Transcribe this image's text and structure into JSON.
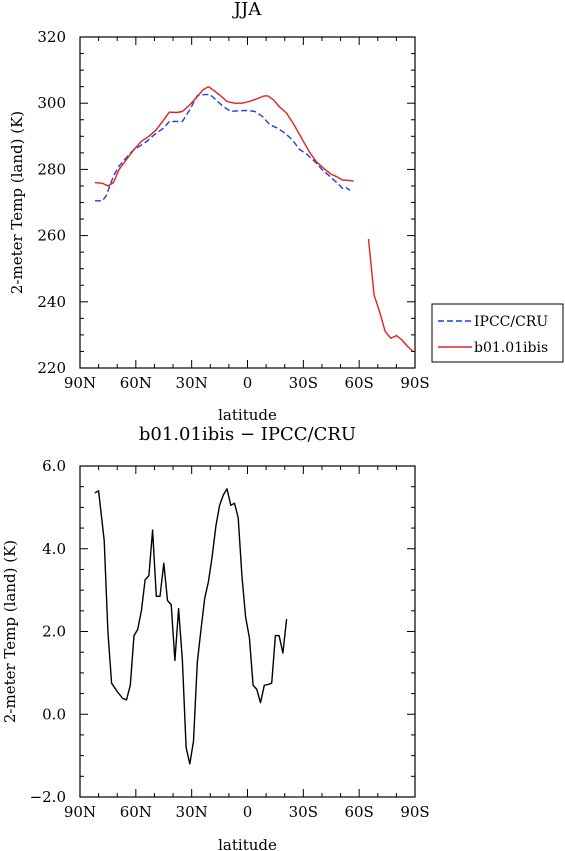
{
  "chart_data": [
    {
      "type": "line",
      "title": "JJA",
      "xlabel": "latitude",
      "ylabel": "2-meter Temp (land) (K)",
      "xlim": [
        90,
        -90
      ],
      "ylim": [
        220,
        320
      ],
      "xtick_values": [
        90,
        60,
        30,
        0,
        -30,
        -60,
        -90
      ],
      "xtick_labels": [
        "90N",
        "60N",
        "30N",
        "0",
        "30S",
        "60S",
        "90S"
      ],
      "ytick_values": [
        220,
        240,
        260,
        280,
        300,
        320
      ],
      "ytick_labels": [
        "220",
        "240",
        "260",
        "280",
        "300",
        "320"
      ],
      "legend_position": "right",
      "series": [
        {
          "name": "IPCC/CRU",
          "color": "#1f3fd8",
          "style": "dashed",
          "segments": [
            [
              [
                82,
                270.5
              ],
              [
                78,
                270.5
              ],
              [
                76,
                272
              ],
              [
                72,
                278
              ],
              [
                69,
                281
              ],
              [
                66,
                283
              ],
              [
                62,
                285.5
              ],
              [
                58,
                287
              ],
              [
                54,
                288.5
              ],
              [
                50,
                290.5
              ],
              [
                45,
                292.5
              ],
              [
                42,
                294.5
              ],
              [
                39,
                294.5
              ],
              [
                35,
                294.5
              ],
              [
                31,
                298
              ],
              [
                27,
                302.3
              ],
              [
                23,
                302.6
              ],
              [
                20,
                302.6
              ],
              [
                17,
                301
              ],
              [
                13,
                299
              ],
              [
                9,
                297.5
              ],
              [
                5,
                297.7
              ],
              [
                0,
                297.8
              ],
              [
                -4,
                297.5
              ],
              [
                -8,
                296
              ],
              [
                -12,
                293.5
              ],
              [
                -16,
                292.5
              ],
              [
                -20,
                291
              ],
              [
                -24,
                289
              ],
              [
                -28,
                286
              ],
              [
                -32,
                284.5
              ],
              [
                -36,
                282.5
              ],
              [
                -40,
                280
              ],
              [
                -44,
                278
              ],
              [
                -48,
                276
              ],
              [
                -51,
                274.3
              ],
              [
                -53,
                274.5
              ],
              [
                -55,
                273.7
              ]
            ]
          ]
        },
        {
          "name": "b01.01ibis",
          "color": "#e02020",
          "style": "solid",
          "segments": [
            [
              [
                82,
                276
              ],
              [
                78,
                275.8
              ],
              [
                75,
                275
              ],
              [
                72,
                276
              ],
              [
                69,
                280
              ],
              [
                65,
                283
              ],
              [
                61,
                286
              ],
              [
                57,
                288.5
              ],
              [
                53,
                290
              ],
              [
                49,
                292
              ],
              [
                45,
                295
              ],
              [
                42,
                297.3
              ],
              [
                38,
                297.2
              ],
              [
                35,
                297.5
              ],
              [
                31,
                299.5
              ],
              [
                27,
                302
              ],
              [
                24,
                304
              ],
              [
                21,
                305
              ],
              [
                18,
                303.8
              ],
              [
                15,
                302.5
              ],
              [
                11,
                300.5
              ],
              [
                7,
                300
              ],
              [
                3,
                300
              ],
              [
                -1,
                300.5
              ],
              [
                -5,
                301.3
              ],
              [
                -9,
                302.2
              ],
              [
                -11,
                302.2
              ],
              [
                -14,
                301
              ],
              [
                -17,
                299
              ],
              [
                -21,
                297
              ],
              [
                -25,
                293.5
              ],
              [
                -29,
                289.5
              ],
              [
                -33,
                285.5
              ],
              [
                -37,
                282.3
              ],
              [
                -41,
                280.3
              ],
              [
                -45,
                278.5
              ],
              [
                -48,
                277.8
              ],
              [
                -51,
                276.8
              ],
              [
                -54,
                276.7
              ],
              [
                -57,
                276.5
              ]
            ],
            [
              [
                -65,
                259
              ],
              [
                -68,
                242
              ],
              [
                -71,
                237
              ],
              [
                -74,
                231
              ],
              [
                -77,
                229
              ],
              [
                -80,
                229.8
              ],
              [
                -83,
                228.5
              ],
              [
                -86,
                226.5
              ],
              [
                -89,
                225
              ]
            ]
          ]
        }
      ]
    },
    {
      "type": "line",
      "title": "b01.01ibis − IPCC/CRU",
      "xlabel": "latitude",
      "ylabel": "2-meter Temp (land) (K)",
      "xlim": [
        90,
        -90
      ],
      "ylim": [
        -2.0,
        6.0
      ],
      "xtick_values": [
        90,
        60,
        30,
        0,
        -30,
        -60,
        -90
      ],
      "xtick_labels": [
        "90N",
        "60N",
        "30N",
        "0",
        "30S",
        "60S",
        "90S"
      ],
      "ytick_values": [
        -2.0,
        0.0,
        2.0,
        4.0,
        6.0
      ],
      "ytick_labels": [
        "−2.0",
        "0.0",
        "2.0",
        "4.0",
        "6.0"
      ],
      "series": [
        {
          "color": "#000000",
          "style": "solid",
          "segments": [
            [
              [
                82,
                5.35
              ],
              [
                80,
                5.4
              ],
              [
                77,
                4.2
              ],
              [
                75,
                2.0
              ],
              [
                73,
                0.75
              ],
              [
                70,
                0.55
              ],
              [
                67,
                0.38
              ],
              [
                65,
                0.35
              ],
              [
                63,
                0.7
              ],
              [
                61,
                1.9
              ],
              [
                59,
                2.05
              ],
              [
                57,
                2.5
              ],
              [
                55,
                3.25
              ],
              [
                53,
                3.35
              ],
              [
                51,
                4.45
              ],
              [
                49,
                2.85
              ],
              [
                47,
                2.85
              ],
              [
                45,
                3.65
              ],
              [
                43,
                2.75
              ],
              [
                41,
                2.65
              ],
              [
                39,
                1.3
              ],
              [
                37,
                2.55
              ],
              [
                35,
                1.3
              ],
              [
                33,
                -0.8
              ],
              [
                31,
                -1.2
              ],
              [
                29,
                -0.65
              ],
              [
                27,
                1.25
              ],
              [
                25,
                2.05
              ],
              [
                23,
                2.8
              ],
              [
                21,
                3.2
              ],
              [
                19,
                3.8
              ],
              [
                17,
                4.55
              ],
              [
                15,
                5.05
              ],
              [
                13,
                5.3
              ],
              [
                11,
                5.45
              ],
              [
                9,
                5.05
              ],
              [
                7,
                5.1
              ],
              [
                5,
                4.75
              ],
              [
                3,
                3.35
              ],
              [
                1,
                2.35
              ],
              [
                -1,
                1.85
              ],
              [
                -3,
                0.7
              ],
              [
                -5,
                0.6
              ],
              [
                -7,
                0.28
              ],
              [
                -9,
                0.7
              ],
              [
                -11,
                0.72
              ],
              [
                -13,
                0.75
              ],
              [
                -15,
                1.9
              ],
              [
                -17,
                1.9
              ],
              [
                -19,
                1.48
              ],
              [
                -21,
                2.3
              ]
            ]
          ]
        }
      ]
    }
  ]
}
